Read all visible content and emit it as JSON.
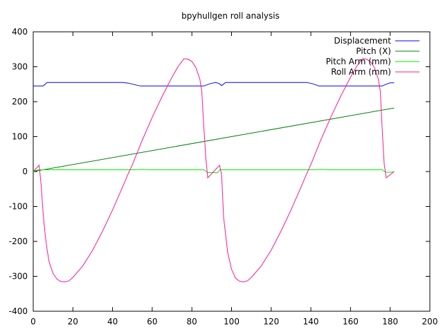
{
  "chart_data": {
    "type": "line",
    "title": "bpyhullgen roll analysis",
    "xlabel": "",
    "ylabel": "",
    "xlim": [
      0,
      200
    ],
    "ylim": [
      -400,
      400
    ],
    "xticks": [
      0,
      20,
      40,
      60,
      80,
      100,
      120,
      140,
      160,
      180,
      200
    ],
    "yticks": [
      -400,
      -300,
      -200,
      -100,
      0,
      100,
      200,
      300,
      400
    ],
    "grid": false,
    "legend_position": "top-right",
    "series": [
      {
        "name": "Displacement",
        "color": "#0000ff",
        "points": [
          [
            0,
            245
          ],
          [
            5,
            245
          ],
          [
            7,
            255
          ],
          [
            10,
            255
          ],
          [
            20,
            255
          ],
          [
            30,
            255
          ],
          [
            40,
            255
          ],
          [
            45,
            255
          ],
          [
            48,
            253
          ],
          [
            51,
            249
          ],
          [
            54,
            245
          ],
          [
            60,
            245
          ],
          [
            70,
            245
          ],
          [
            80,
            245
          ],
          [
            86,
            245
          ],
          [
            89,
            251
          ],
          [
            92,
            255
          ],
          [
            94,
            251
          ],
          [
            95,
            246
          ],
          [
            97,
            255
          ],
          [
            100,
            255
          ],
          [
            110,
            255
          ],
          [
            120,
            255
          ],
          [
            130,
            255
          ],
          [
            138,
            255
          ],
          [
            141,
            251
          ],
          [
            144,
            245
          ],
          [
            150,
            245
          ],
          [
            160,
            245
          ],
          [
            170,
            245
          ],
          [
            176,
            245
          ],
          [
            178,
            250
          ],
          [
            180,
            254
          ],
          [
            182,
            254
          ]
        ]
      },
      {
        "name": "Pitch (X)",
        "color": "#008000",
        "points": [
          [
            0,
            0
          ],
          [
            182,
            182
          ]
        ]
      },
      {
        "name": "Pitch Arm (mm)",
        "color": "#00ee00",
        "points": [
          [
            0,
            2
          ],
          [
            3,
            5
          ],
          [
            5,
            5
          ],
          [
            50,
            5
          ],
          [
            55,
            6
          ],
          [
            60,
            5
          ],
          [
            86,
            5
          ],
          [
            87,
            1
          ],
          [
            88,
            -3
          ],
          [
            93,
            -3
          ],
          [
            94,
            5
          ],
          [
            100,
            5
          ],
          [
            140,
            5
          ],
          [
            145,
            6
          ],
          [
            150,
            5
          ],
          [
            176,
            5
          ],
          [
            177,
            1
          ],
          [
            178,
            -2
          ],
          [
            181,
            -2
          ],
          [
            182,
            0
          ]
        ]
      },
      {
        "name": "Roll Arm (mm)",
        "color": "#ff1493",
        "points": [
          [
            0,
            0
          ],
          [
            3,
            18
          ],
          [
            4,
            -40
          ],
          [
            5,
            -120
          ],
          [
            6,
            -180
          ],
          [
            7,
            -225
          ],
          [
            8,
            -258
          ],
          [
            10,
            -292
          ],
          [
            12,
            -308
          ],
          [
            14,
            -315
          ],
          [
            16,
            -316
          ],
          [
            18,
            -313
          ],
          [
            20,
            -303
          ],
          [
            25,
            -270
          ],
          [
            30,
            -225
          ],
          [
            35,
            -170
          ],
          [
            40,
            -110
          ],
          [
            45,
            -45
          ],
          [
            48,
            -5
          ],
          [
            50,
            20
          ],
          [
            55,
            90
          ],
          [
            60,
            155
          ],
          [
            65,
            215
          ],
          [
            70,
            270
          ],
          [
            73,
            300
          ],
          [
            76,
            323
          ],
          [
            78,
            322
          ],
          [
            80,
            315
          ],
          [
            82,
            298
          ],
          [
            84,
            265
          ],
          [
            85,
            230
          ],
          [
            86,
            130
          ],
          [
            87,
            40
          ],
          [
            88,
            -18
          ],
          [
            91,
            0
          ],
          [
            94,
            18
          ],
          [
            95,
            -10
          ],
          [
            96,
            -130
          ],
          [
            98,
            -230
          ],
          [
            100,
            -280
          ],
          [
            102,
            -305
          ],
          [
            104,
            -314
          ],
          [
            106,
            -316
          ],
          [
            108,
            -313
          ],
          [
            110,
            -303
          ],
          [
            115,
            -270
          ],
          [
            120,
            -225
          ],
          [
            125,
            -170
          ],
          [
            130,
            -110
          ],
          [
            135,
            -45
          ],
          [
            138,
            -5
          ],
          [
            140,
            20
          ],
          [
            145,
            90
          ],
          [
            150,
            155
          ],
          [
            155,
            215
          ],
          [
            160,
            270
          ],
          [
            163,
            300
          ],
          [
            166,
            323
          ],
          [
            168,
            322
          ],
          [
            170,
            315
          ],
          [
            172,
            298
          ],
          [
            174,
            265
          ],
          [
            175,
            230
          ],
          [
            176,
            120
          ],
          [
            177,
            20
          ],
          [
            178,
            -18
          ],
          [
            182,
            0
          ]
        ]
      }
    ]
  }
}
